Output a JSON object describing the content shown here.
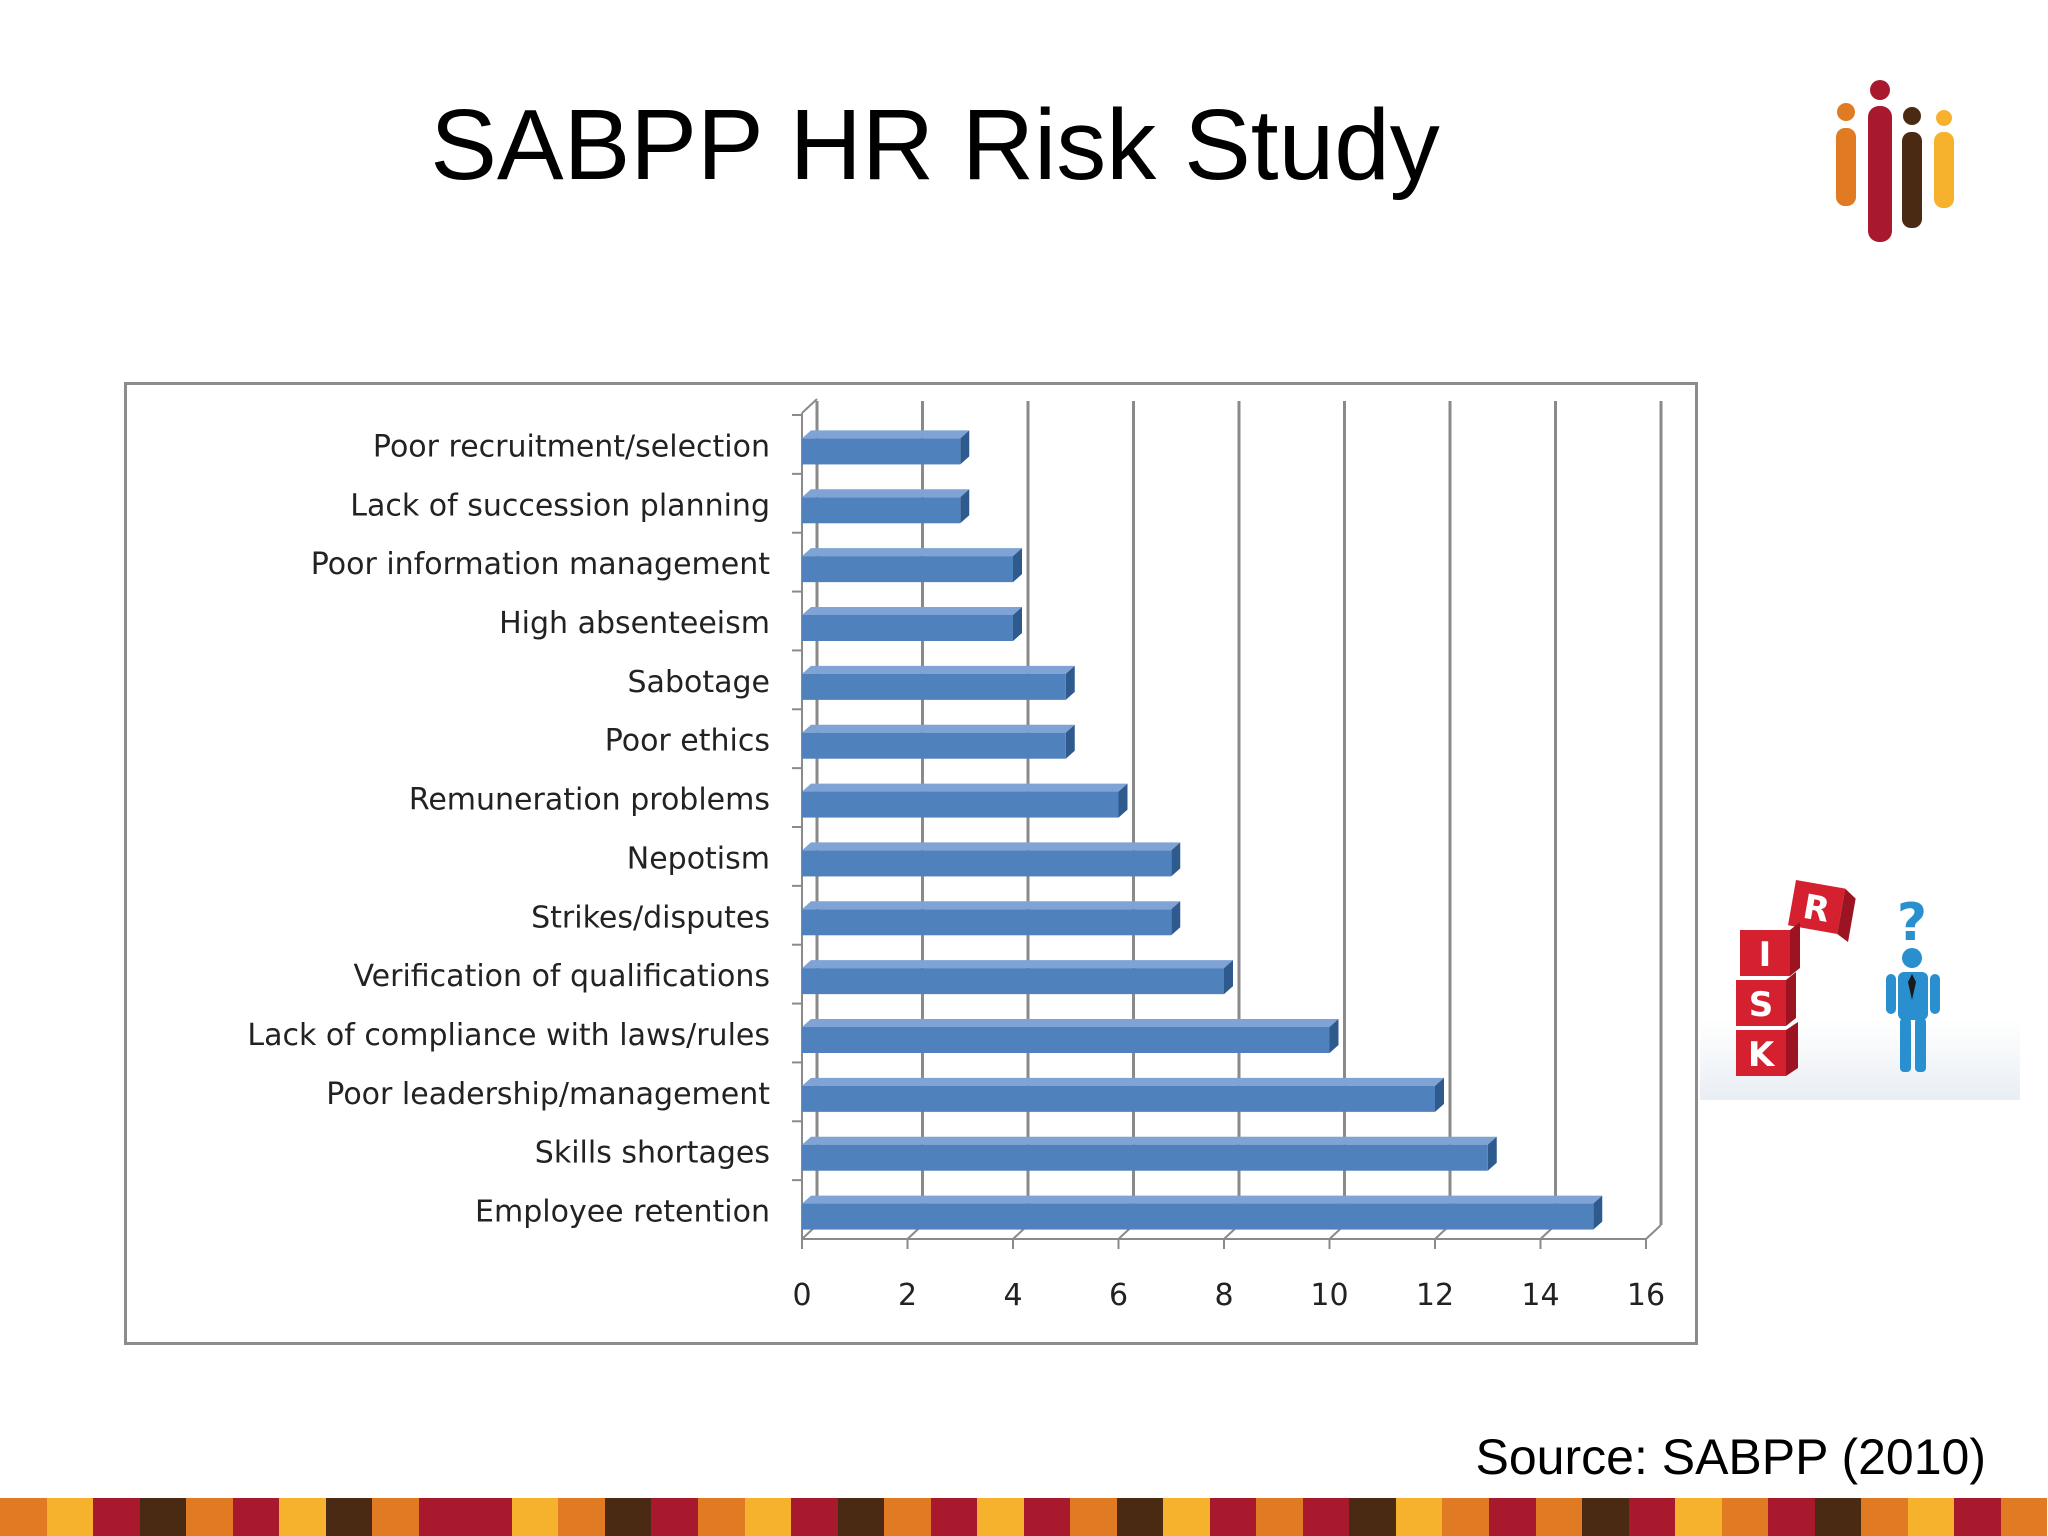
{
  "slide": {
    "title": "SABPP HR Risk Study",
    "source": "Source: SABPP (2010)"
  },
  "colors": {
    "bar_front": "#4f81bd",
    "bar_top": "#7ea3d4",
    "bar_side": "#2f5a8e",
    "grid": "#8a8a8a",
    "logo_orange": "#e07b24",
    "logo_red": "#a8192e",
    "logo_brown": "#4a2a12",
    "logo_yellow": "#f7b22d"
  },
  "chart_data": {
    "type": "bar",
    "orientation": "horizontal",
    "categories": [
      "Poor recruitment/selection",
      "Lack of succession planning",
      "Poor information management",
      "High absenteeism",
      "Sabotage",
      "Poor ethics",
      "Remuneration problems",
      "Nepotism",
      "Strikes/disputes",
      "Verification of qualifications",
      "Lack of compliance with laws/rules",
      "Poor leadership/management",
      "Skills shortages",
      "Employee retention"
    ],
    "values": [
      3,
      3,
      4,
      4,
      5,
      5,
      6,
      7,
      7,
      8,
      10,
      12,
      13,
      15
    ],
    "xlim": [
      0,
      16
    ],
    "xticks": [
      0,
      2,
      4,
      6,
      8,
      10,
      12,
      14,
      16
    ],
    "grid": true,
    "legend": "none",
    "style": "3d"
  },
  "illustration": {
    "icons": [
      "risk-blocks-icon",
      "question-man-icon"
    ],
    "letters": [
      "R",
      "I",
      "S",
      "K"
    ]
  },
  "footer": {
    "stripe_colors": [
      "#e07b24",
      "#f7b22d",
      "#a8192e",
      "#4a2a12",
      "#e07b24",
      "#a8192e",
      "#f7b22d",
      "#4a2a12",
      "#e07b24",
      "#a8192e",
      "#a8192e",
      "#f7b22d",
      "#e07b24",
      "#4a2a12",
      "#a8192e",
      "#e07b24",
      "#f7b22d",
      "#a8192e",
      "#4a2a12",
      "#e07b24",
      "#a8192e",
      "#f7b22d",
      "#a8192e",
      "#e07b24",
      "#4a2a12",
      "#f7b22d",
      "#a8192e",
      "#e07b24",
      "#a8192e",
      "#4a2a12",
      "#f7b22d",
      "#e07b24",
      "#a8192e",
      "#e07b24",
      "#4a2a12",
      "#a8192e",
      "#f7b22d",
      "#e07b24",
      "#a8192e",
      "#4a2a12",
      "#e07b24",
      "#f7b22d",
      "#a8192e",
      "#e07b24"
    ]
  }
}
